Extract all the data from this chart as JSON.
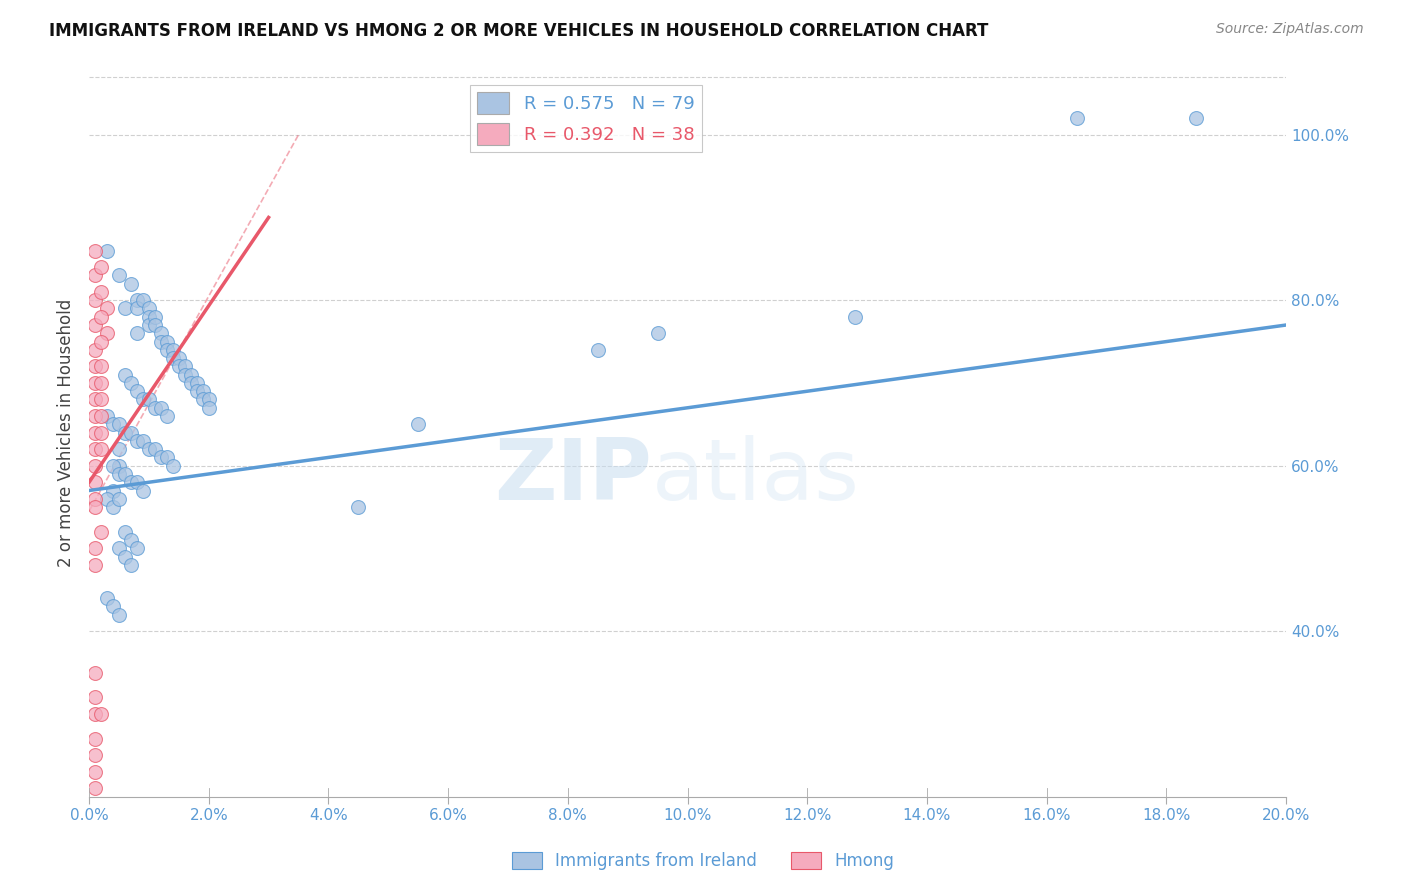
{
  "title": "IMMIGRANTS FROM IRELAND VS HMONG 2 OR MORE VEHICLES IN HOUSEHOLD CORRELATION CHART",
  "source": "Source: ZipAtlas.com",
  "ylabel": "2 or more Vehicles in Household",
  "xlim": [
    0.0,
    0.2
  ],
  "ylim": [
    0.2,
    1.08
  ],
  "xticks": [
    0.0,
    0.02,
    0.04,
    0.06,
    0.08,
    0.1,
    0.12,
    0.14,
    0.16,
    0.18,
    0.2
  ],
  "yticks": [
    0.4,
    0.6,
    0.8,
    1.0
  ],
  "xlabel_ticks": [
    "0.0%",
    "2.0%",
    "4.0%",
    "6.0%",
    "8.0%",
    "10.0%",
    "12.0%",
    "14.0%",
    "16.0%",
    "18.0%",
    "20.0%"
  ],
  "ylabel_ticks": [
    "40.0%",
    "60.0%",
    "80.0%",
    "100.0%"
  ],
  "ireland_R": 0.575,
  "ireland_N": 79,
  "hmong_R": 0.392,
  "hmong_N": 38,
  "ireland_color": "#aac4e2",
  "hmong_color": "#f5abbe",
  "ireland_line_color": "#5b9bd5",
  "hmong_line_color": "#e8586a",
  "ireland_scatter": [
    [
      0.005,
      0.62
    ],
    [
      0.005,
      0.6
    ],
    [
      0.006,
      0.79
    ],
    [
      0.007,
      0.82
    ],
    [
      0.008,
      0.8
    ],
    [
      0.008,
      0.79
    ],
    [
      0.009,
      0.8
    ],
    [
      0.01,
      0.79
    ],
    [
      0.01,
      0.78
    ],
    [
      0.01,
      0.77
    ],
    [
      0.011,
      0.78
    ],
    [
      0.011,
      0.77
    ],
    [
      0.012,
      0.76
    ],
    [
      0.012,
      0.75
    ],
    [
      0.013,
      0.75
    ],
    [
      0.013,
      0.74
    ],
    [
      0.014,
      0.74
    ],
    [
      0.014,
      0.73
    ],
    [
      0.015,
      0.73
    ],
    [
      0.015,
      0.72
    ],
    [
      0.016,
      0.72
    ],
    [
      0.016,
      0.71
    ],
    [
      0.017,
      0.71
    ],
    [
      0.017,
      0.7
    ],
    [
      0.018,
      0.7
    ],
    [
      0.018,
      0.69
    ],
    [
      0.019,
      0.69
    ],
    [
      0.019,
      0.68
    ],
    [
      0.02,
      0.68
    ],
    [
      0.02,
      0.67
    ],
    [
      0.003,
      0.86
    ],
    [
      0.005,
      0.83
    ],
    [
      0.006,
      0.71
    ],
    [
      0.007,
      0.7
    ],
    [
      0.008,
      0.69
    ],
    [
      0.009,
      0.68
    ],
    [
      0.01,
      0.68
    ],
    [
      0.011,
      0.67
    ],
    [
      0.012,
      0.67
    ],
    [
      0.013,
      0.66
    ],
    [
      0.003,
      0.66
    ],
    [
      0.004,
      0.65
    ],
    [
      0.005,
      0.65
    ],
    [
      0.006,
      0.64
    ],
    [
      0.007,
      0.64
    ],
    [
      0.008,
      0.63
    ],
    [
      0.009,
      0.63
    ],
    [
      0.01,
      0.62
    ],
    [
      0.011,
      0.62
    ],
    [
      0.012,
      0.61
    ],
    [
      0.013,
      0.61
    ],
    [
      0.014,
      0.6
    ],
    [
      0.004,
      0.6
    ],
    [
      0.005,
      0.59
    ],
    [
      0.006,
      0.59
    ],
    [
      0.007,
      0.58
    ],
    [
      0.008,
      0.58
    ],
    [
      0.009,
      0.57
    ],
    [
      0.004,
      0.57
    ],
    [
      0.003,
      0.56
    ],
    [
      0.004,
      0.55
    ],
    [
      0.005,
      0.56
    ],
    [
      0.005,
      0.5
    ],
    [
      0.006,
      0.49
    ],
    [
      0.007,
      0.48
    ],
    [
      0.003,
      0.44
    ],
    [
      0.004,
      0.43
    ],
    [
      0.005,
      0.42
    ],
    [
      0.006,
      0.52
    ],
    [
      0.007,
      0.51
    ],
    [
      0.008,
      0.5
    ],
    [
      0.085,
      0.74
    ],
    [
      0.095,
      0.76
    ],
    [
      0.128,
      0.78
    ],
    [
      0.165,
      1.02
    ],
    [
      0.185,
      1.02
    ],
    [
      0.045,
      0.55
    ],
    [
      0.055,
      0.65
    ],
    [
      0.008,
      0.76
    ]
  ],
  "hmong_scatter": [
    [
      0.001,
      0.86
    ],
    [
      0.001,
      0.83
    ],
    [
      0.001,
      0.8
    ],
    [
      0.002,
      0.84
    ],
    [
      0.002,
      0.81
    ],
    [
      0.003,
      0.79
    ],
    [
      0.003,
      0.76
    ],
    [
      0.001,
      0.77
    ],
    [
      0.001,
      0.74
    ],
    [
      0.001,
      0.72
    ],
    [
      0.001,
      0.7
    ],
    [
      0.001,
      0.68
    ],
    [
      0.001,
      0.66
    ],
    [
      0.001,
      0.64
    ],
    [
      0.001,
      0.62
    ],
    [
      0.001,
      0.6
    ],
    [
      0.001,
      0.58
    ],
    [
      0.001,
      0.56
    ],
    [
      0.002,
      0.78
    ],
    [
      0.002,
      0.75
    ],
    [
      0.002,
      0.72
    ],
    [
      0.002,
      0.7
    ],
    [
      0.002,
      0.68
    ],
    [
      0.002,
      0.66
    ],
    [
      0.002,
      0.64
    ],
    [
      0.002,
      0.62
    ],
    [
      0.001,
      0.5
    ],
    [
      0.001,
      0.48
    ],
    [
      0.002,
      0.52
    ],
    [
      0.001,
      0.35
    ],
    [
      0.001,
      0.32
    ],
    [
      0.001,
      0.3
    ],
    [
      0.002,
      0.3
    ],
    [
      0.001,
      0.27
    ],
    [
      0.001,
      0.25
    ],
    [
      0.001,
      0.23
    ],
    [
      0.001,
      0.21
    ],
    [
      0.001,
      0.55
    ]
  ],
  "ireland_line": [
    0.0,
    0.2
  ],
  "ireland_line_y": [
    0.57,
    0.77
  ],
  "hmong_line": [
    0.0,
    0.03
  ],
  "hmong_line_y": [
    0.58,
    0.9
  ],
  "ref_line": [
    [
      0.0,
      0.2
    ],
    [
      0.2,
      1.0
    ]
  ],
  "legend_items": [
    {
      "label": "R = 0.575   N = 79",
      "color": "#aac4e2"
    },
    {
      "label": "R = 0.392   N = 38",
      "color": "#f5abbe"
    }
  ],
  "watermark_zip": "ZIP",
  "watermark_atlas": "atlas",
  "background_color": "#ffffff",
  "grid_color": "#d0d0d0",
  "tick_color": "#5b9bd5",
  "axis_color": "#aaaaaa"
}
